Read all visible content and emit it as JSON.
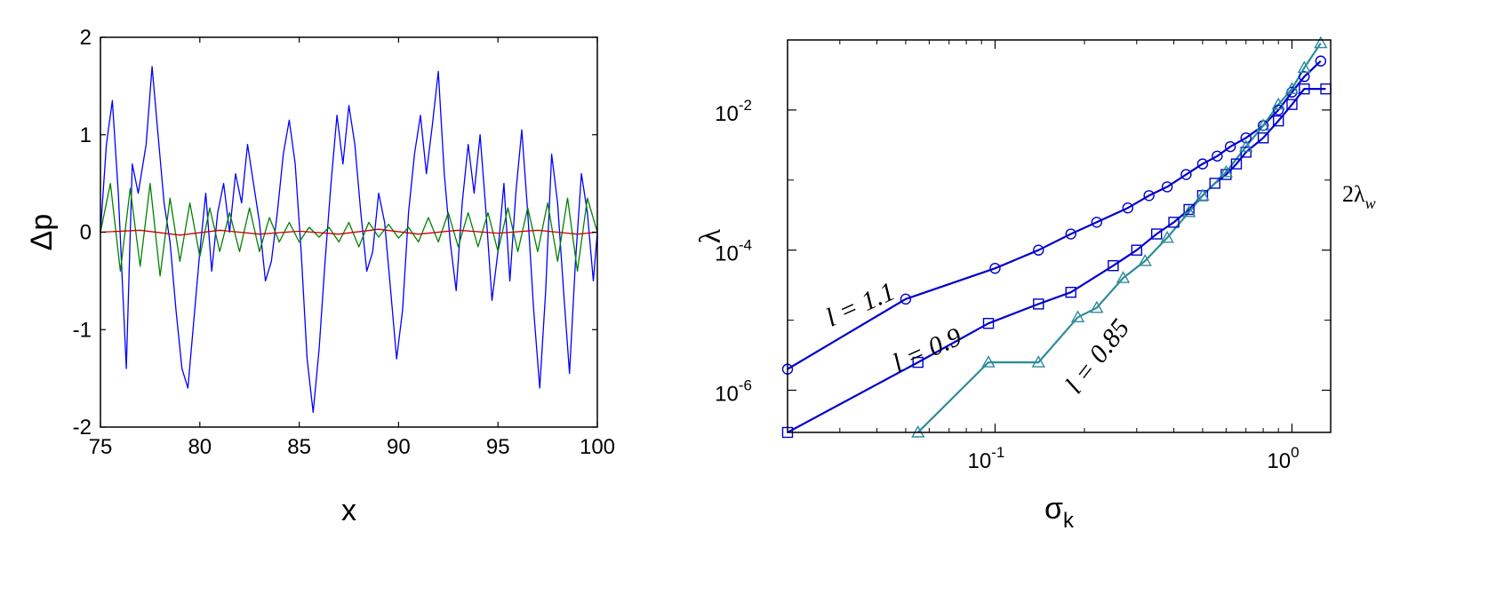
{
  "chart_data": [
    {
      "type": "line",
      "title": "",
      "xlabel": "x",
      "ylabel": "Δp",
      "xlim": [
        75,
        100
      ],
      "ylim": [
        -2,
        2
      ],
      "x_ticks": [
        75,
        80,
        85,
        90,
        95,
        100
      ],
      "y_ticks": [
        -2,
        -1,
        0,
        1,
        2
      ],
      "x_tick_labels": [
        "75",
        "80",
        "85",
        "90",
        "95",
        "100"
      ],
      "y_tick_labels": [
        "-2",
        "-1",
        "0",
        "1",
        "2"
      ],
      "grid": false,
      "series": [
        {
          "color": "#0000ff",
          "x": [
            75,
            75.3,
            75.6,
            75.9,
            76.3,
            76.6,
            76.9,
            77.3,
            77.6,
            77.9,
            78.2,
            78.5,
            78.8,
            79.1,
            79.4,
            79.7,
            80.0,
            80.3,
            80.6,
            80.9,
            81.2,
            81.5,
            81.8,
            82.1,
            82.4,
            82.7,
            83.0,
            83.3,
            83.6,
            83.9,
            84.2,
            84.5,
            84.8,
            85.1,
            85.4,
            85.7,
            86.0,
            86.3,
            86.6,
            86.9,
            87.2,
            87.5,
            87.8,
            88.1,
            88.4,
            88.7,
            89.0,
            89.3,
            89.6,
            89.9,
            90.2,
            90.5,
            90.8,
            91.1,
            91.4,
            91.7,
            92.0,
            92.3,
            92.6,
            92.9,
            93.2,
            93.5,
            93.8,
            94.1,
            94.4,
            94.7,
            95.0,
            95.3,
            95.6,
            95.9,
            96.2,
            96.5,
            96.8,
            97.1,
            97.4,
            97.7,
            98.0,
            98.3,
            98.6,
            98.9,
            99.2,
            99.5,
            99.8,
            100
          ],
          "values": [
            0.0,
            0.9,
            1.35,
            0.4,
            -1.4,
            0.7,
            0.4,
            0.9,
            1.7,
            1.0,
            0.3,
            -0.1,
            -0.8,
            -1.4,
            -1.6,
            -0.9,
            -0.2,
            0.4,
            -0.4,
            0.2,
            0.5,
            0.0,
            0.6,
            0.3,
            0.9,
            0.5,
            0.1,
            -0.5,
            -0.3,
            0.2,
            0.8,
            1.15,
            0.7,
            -0.2,
            -1.3,
            -1.85,
            -1.2,
            -0.3,
            0.5,
            1.2,
            0.7,
            1.3,
            0.9,
            0.2,
            -0.4,
            -0.2,
            0.4,
            0.1,
            -0.6,
            -1.3,
            -0.8,
            0.2,
            0.8,
            1.2,
            0.6,
            1.1,
            1.65,
            0.6,
            -0.1,
            -0.6,
            0.3,
            0.9,
            0.4,
            1.0,
            0.2,
            -0.7,
            -0.2,
            0.5,
            -0.5,
            0.4,
            1.05,
            0.2,
            -0.8,
            -1.6,
            -0.6,
            0.8,
            0.3,
            -0.6,
            -1.45,
            -0.3,
            0.6,
            0.2,
            -0.5,
            0.0
          ]
        },
        {
          "color": "#008000",
          "x": [
            75,
            75.5,
            76,
            76.5,
            77,
            77.5,
            78,
            78.5,
            79,
            79.5,
            80,
            80.5,
            81,
            81.5,
            82,
            82.5,
            83,
            83.5,
            84,
            84.5,
            85,
            85.5,
            86,
            86.5,
            87,
            87.5,
            88,
            88.5,
            89,
            89.5,
            90,
            90.5,
            91,
            91.5,
            92,
            92.5,
            93,
            93.5,
            94,
            94.5,
            95,
            95.5,
            96,
            96.5,
            97,
            97.5,
            98,
            98.5,
            99,
            99.5,
            100
          ],
          "values": [
            0.0,
            0.5,
            -0.4,
            0.45,
            -0.35,
            0.5,
            -0.45,
            0.35,
            -0.3,
            0.3,
            -0.25,
            0.25,
            -0.2,
            0.2,
            -0.2,
            0.25,
            -0.2,
            0.15,
            -0.1,
            0.1,
            -0.1,
            0.05,
            -0.05,
            0.05,
            -0.1,
            0.1,
            -0.15,
            0.1,
            -0.05,
            0.08,
            -0.06,
            0.05,
            -0.1,
            0.15,
            -0.1,
            0.2,
            -0.15,
            0.2,
            -0.15,
            0.2,
            -0.2,
            0.25,
            -0.2,
            0.25,
            -0.2,
            0.3,
            -0.3,
            0.35,
            -0.4,
            0.35,
            0.0
          ]
        },
        {
          "color": "#cc0000",
          "x": [
            75,
            77,
            79,
            81,
            83,
            85,
            87,
            89,
            91,
            93,
            95,
            97,
            99,
            100
          ],
          "values": [
            0.0,
            0.02,
            -0.03,
            0.02,
            -0.02,
            0.01,
            -0.02,
            0.03,
            -0.02,
            0.02,
            -0.01,
            0.02,
            -0.02,
            0.0
          ]
        }
      ]
    },
    {
      "type": "line",
      "title": "",
      "xlabel": "σ",
      "xlabel_sub": "k",
      "ylabel": "λ",
      "x_scale": "log",
      "y_scale": "log",
      "xlim": [
        0.02,
        1.35
      ],
      "ylim": [
        2.5e-07,
        0.1
      ],
      "x_ticks": [
        0.1,
        1.0
      ],
      "y_ticks": [
        1e-06,
        0.0001,
        0.01
      ],
      "x_tick_mantissas": [
        "10",
        "10"
      ],
      "x_tick_exponents": [
        "-1",
        "0"
      ],
      "y_tick_mantissas": [
        "10",
        "10",
        "10"
      ],
      "y_tick_exponents": [
        "-6",
        "-4",
        "-2"
      ],
      "grid": false,
      "annotations": [
        {
          "text": "l = 1.1",
          "x": 0.028,
          "y": 8e-06
        },
        {
          "text": "l = 0.9",
          "x": 0.047,
          "y": 1.8e-06
        },
        {
          "text": "l = 0.85",
          "x": 0.19,
          "y": 8.5e-07
        },
        {
          "text": "2λ",
          "subscript": "w",
          "side_label": true
        }
      ],
      "series": [
        {
          "marker": "circle",
          "color": "#0000cc",
          "x": [
            0.02,
            0.05,
            0.1,
            0.14,
            0.18,
            0.22,
            0.28,
            0.33,
            0.38,
            0.44,
            0.5,
            0.56,
            0.62,
            0.7,
            0.8,
            0.9,
            1.0,
            1.1,
            1.25
          ],
          "values": [
            2e-06,
            2e-05,
            5.5e-05,
            0.0001,
            0.00017,
            0.00025,
            0.0004,
            0.0006,
            0.0008,
            0.0012,
            0.0017,
            0.0022,
            0.003,
            0.004,
            0.006,
            0.01,
            0.018,
            0.03,
            0.05
          ]
        },
        {
          "marker": "square",
          "color": "#0000cc",
          "x": [
            0.02,
            0.055,
            0.095,
            0.14,
            0.18,
            0.25,
            0.3,
            0.35,
            0.4,
            0.45,
            0.5,
            0.55,
            0.6,
            0.65,
            0.7,
            0.8,
            0.9,
            1.0,
            1.1,
            1.3
          ],
          "values": [
            2.5e-07,
            2.5e-06,
            9e-06,
            1.7e-05,
            2.5e-05,
            6e-05,
            0.0001,
            0.00017,
            0.00025,
            0.00038,
            0.0006,
            0.0009,
            0.0012,
            0.0017,
            0.0025,
            0.004,
            0.007,
            0.012,
            0.02,
            0.02
          ]
        },
        {
          "marker": "triangle",
          "color": "#2e8b9a",
          "x": [
            0.055,
            0.095,
            0.14,
            0.19,
            0.22,
            0.27,
            0.32,
            0.38,
            0.45,
            0.5,
            0.6,
            0.7,
            0.8,
            0.9,
            1.0,
            1.1,
            1.25
          ],
          "values": [
            2.5e-07,
            2.5e-06,
            2.5e-06,
            1.1e-05,
            1.5e-05,
            4e-05,
            7e-05,
            0.00015,
            0.00035,
            0.0006,
            0.0013,
            0.003,
            0.006,
            0.012,
            0.02,
            0.04,
            0.09
          ]
        }
      ]
    }
  ]
}
